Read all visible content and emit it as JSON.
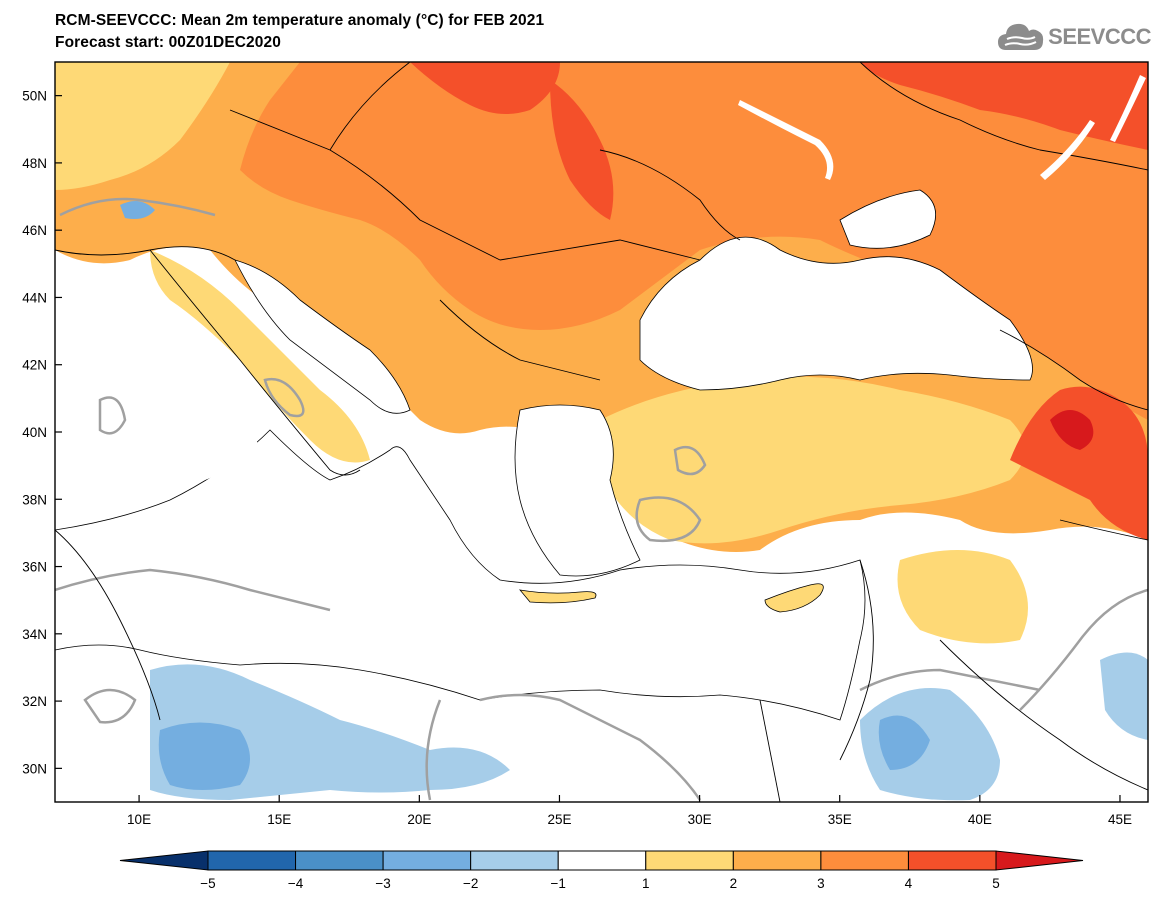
{
  "header": {
    "title_line1": "RCM-SEEVCCC: Mean 2m temperature anomaly (°C) for FEB 2021",
    "title_line2": "Forecast start: 00Z01DEC2020"
  },
  "logo": {
    "text": "SEEVCCC",
    "icon": "cloud-icon"
  },
  "map": {
    "variable": "Mean 2m temperature anomaly",
    "unit": "°C",
    "lon_range": [
      7,
      46
    ],
    "lat_range": [
      29,
      51
    ],
    "lon_ticks": [
      "10E",
      "15E",
      "20E",
      "25E",
      "30E",
      "35E",
      "40E",
      "45E"
    ],
    "lat_ticks": [
      "50N",
      "48N",
      "46N",
      "44N",
      "42N",
      "40N",
      "38N",
      "36N",
      "34N",
      "32N",
      "30N"
    ],
    "contour_label": "0"
  },
  "colorbar": {
    "labels": [
      "−5",
      "−4",
      "−3",
      "−2",
      "−1",
      "1",
      "2",
      "3",
      "4",
      "5"
    ],
    "colors": [
      "#08306b",
      "#2166ac",
      "#4a90c8",
      "#74aee0",
      "#a6cde9",
      "#ffffff",
      "#fed976",
      "#fdae4b",
      "#fd8d3c",
      "#f4502a",
      "#d7191c"
    ]
  }
}
